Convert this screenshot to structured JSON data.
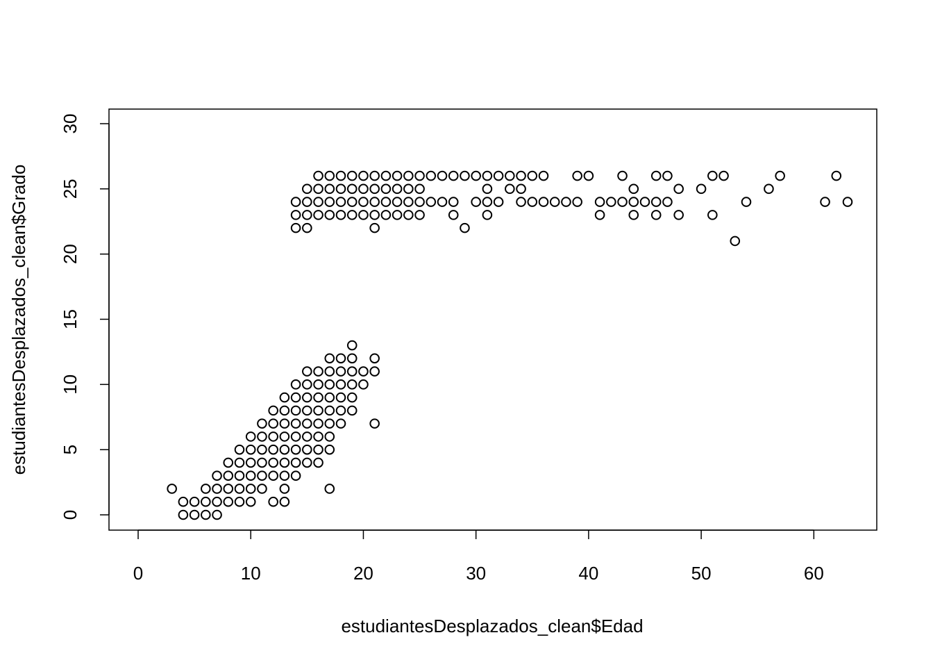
{
  "chart_data": {
    "type": "scatter",
    "title": "",
    "xlabel": "estudiantesDesplazados_clean$Edad",
    "ylabel": "estudiantesDesplazados_clean$Grado",
    "xlim": [
      0,
      63
    ],
    "ylim": [
      0,
      30
    ],
    "x_ticks": [
      0,
      10,
      20,
      30,
      40,
      50,
      60
    ],
    "y_ticks": [
      0,
      5,
      10,
      15,
      20,
      25,
      30
    ],
    "grid": false,
    "legend": "none",
    "marker": "open-circle",
    "points": [
      [
        3,
        2
      ],
      [
        4,
        1
      ],
      [
        4,
        0
      ],
      [
        5,
        1
      ],
      [
        5,
        0
      ],
      [
        6,
        2
      ],
      [
        6,
        1
      ],
      [
        6,
        0
      ],
      [
        7,
        3
      ],
      [
        7,
        2
      ],
      [
        7,
        1
      ],
      [
        7,
        0
      ],
      [
        8,
        4
      ],
      [
        8,
        3
      ],
      [
        8,
        2
      ],
      [
        8,
        1
      ],
      [
        9,
        5
      ],
      [
        9,
        4
      ],
      [
        9,
        3
      ],
      [
        9,
        2
      ],
      [
        9,
        1
      ],
      [
        10,
        6
      ],
      [
        10,
        5
      ],
      [
        10,
        4
      ],
      [
        10,
        3
      ],
      [
        10,
        2
      ],
      [
        10,
        1
      ],
      [
        11,
        7
      ],
      [
        11,
        6
      ],
      [
        11,
        5
      ],
      [
        11,
        4
      ],
      [
        11,
        3
      ],
      [
        11,
        2
      ],
      [
        12,
        8
      ],
      [
        12,
        7
      ],
      [
        12,
        6
      ],
      [
        12,
        5
      ],
      [
        12,
        4
      ],
      [
        12,
        3
      ],
      [
        12,
        1
      ],
      [
        13,
        9
      ],
      [
        13,
        8
      ],
      [
        13,
        7
      ],
      [
        13,
        6
      ],
      [
        13,
        5
      ],
      [
        13,
        4
      ],
      [
        13,
        3
      ],
      [
        13,
        2
      ],
      [
        13,
        1
      ],
      [
        14,
        10
      ],
      [
        14,
        9
      ],
      [
        14,
        8
      ],
      [
        14,
        7
      ],
      [
        14,
        6
      ],
      [
        14,
        5
      ],
      [
        14,
        4
      ],
      [
        14,
        3
      ],
      [
        15,
        11
      ],
      [
        15,
        10
      ],
      [
        15,
        9
      ],
      [
        15,
        8
      ],
      [
        15,
        7
      ],
      [
        15,
        6
      ],
      [
        15,
        5
      ],
      [
        15,
        4
      ],
      [
        16,
        11
      ],
      [
        16,
        10
      ],
      [
        16,
        9
      ],
      [
        16,
        8
      ],
      [
        16,
        7
      ],
      [
        16,
        6
      ],
      [
        16,
        5
      ],
      [
        16,
        4
      ],
      [
        17,
        12
      ],
      [
        17,
        11
      ],
      [
        17,
        10
      ],
      [
        17,
        9
      ],
      [
        17,
        8
      ],
      [
        17,
        7
      ],
      [
        17,
        6
      ],
      [
        17,
        5
      ],
      [
        17,
        2
      ],
      [
        18,
        12
      ],
      [
        18,
        11
      ],
      [
        18,
        10
      ],
      [
        18,
        9
      ],
      [
        18,
        8
      ],
      [
        18,
        7
      ],
      [
        19,
        13
      ],
      [
        19,
        12
      ],
      [
        19,
        11
      ],
      [
        19,
        10
      ],
      [
        19,
        9
      ],
      [
        19,
        8
      ],
      [
        20,
        11
      ],
      [
        20,
        10
      ],
      [
        21,
        12
      ],
      [
        21,
        11
      ],
      [
        21,
        7
      ],
      [
        14,
        24
      ],
      [
        14,
        23
      ],
      [
        14,
        22
      ],
      [
        15,
        25
      ],
      [
        15,
        24
      ],
      [
        15,
        23
      ],
      [
        15,
        22
      ],
      [
        16,
        26
      ],
      [
        16,
        25
      ],
      [
        16,
        24
      ],
      [
        16,
        23
      ],
      [
        17,
        26
      ],
      [
        17,
        25
      ],
      [
        17,
        24
      ],
      [
        17,
        23
      ],
      [
        18,
        26
      ],
      [
        18,
        25
      ],
      [
        18,
        24
      ],
      [
        18,
        23
      ],
      [
        19,
        26
      ],
      [
        19,
        25
      ],
      [
        19,
        24
      ],
      [
        19,
        23
      ],
      [
        20,
        26
      ],
      [
        20,
        25
      ],
      [
        20,
        24
      ],
      [
        20,
        23
      ],
      [
        21,
        26
      ],
      [
        21,
        25
      ],
      [
        21,
        24
      ],
      [
        21,
        23
      ],
      [
        21,
        22
      ],
      [
        22,
        26
      ],
      [
        22,
        25
      ],
      [
        22,
        24
      ],
      [
        22,
        23
      ],
      [
        23,
        26
      ],
      [
        23,
        25
      ],
      [
        23,
        24
      ],
      [
        23,
        23
      ],
      [
        24,
        26
      ],
      [
        24,
        25
      ],
      [
        24,
        24
      ],
      [
        24,
        23
      ],
      [
        25,
        26
      ],
      [
        25,
        25
      ],
      [
        25,
        24
      ],
      [
        25,
        23
      ],
      [
        26,
        26
      ],
      [
        26,
        24
      ],
      [
        27,
        26
      ],
      [
        27,
        24
      ],
      [
        28,
        26
      ],
      [
        28,
        24
      ],
      [
        28,
        23
      ],
      [
        29,
        26
      ],
      [
        29,
        22
      ],
      [
        30,
        26
      ],
      [
        30,
        24
      ],
      [
        31,
        26
      ],
      [
        31,
        25
      ],
      [
        31,
        24
      ],
      [
        31,
        23
      ],
      [
        32,
        26
      ],
      [
        32,
        24
      ],
      [
        33,
        26
      ],
      [
        33,
        25
      ],
      [
        34,
        26
      ],
      [
        34,
        25
      ],
      [
        34,
        24
      ],
      [
        35,
        26
      ],
      [
        35,
        24
      ],
      [
        36,
        26
      ],
      [
        36,
        24
      ],
      [
        37,
        24
      ],
      [
        38,
        24
      ],
      [
        39,
        26
      ],
      [
        39,
        24
      ],
      [
        40,
        26
      ],
      [
        41,
        24
      ],
      [
        41,
        23
      ],
      [
        42,
        24
      ],
      [
        43,
        26
      ],
      [
        43,
        24
      ],
      [
        44,
        25
      ],
      [
        44,
        24
      ],
      [
        44,
        23
      ],
      [
        45,
        24
      ],
      [
        46,
        26
      ],
      [
        46,
        24
      ],
      [
        46,
        23
      ],
      [
        47,
        26
      ],
      [
        47,
        24
      ],
      [
        48,
        25
      ],
      [
        48,
        23
      ],
      [
        50,
        25
      ],
      [
        51,
        26
      ],
      [
        51,
        23
      ],
      [
        52,
        26
      ],
      [
        53,
        21
      ],
      [
        54,
        24
      ],
      [
        56,
        25
      ],
      [
        57,
        26
      ],
      [
        61,
        24
      ],
      [
        62,
        26
      ],
      [
        63,
        24
      ]
    ]
  }
}
